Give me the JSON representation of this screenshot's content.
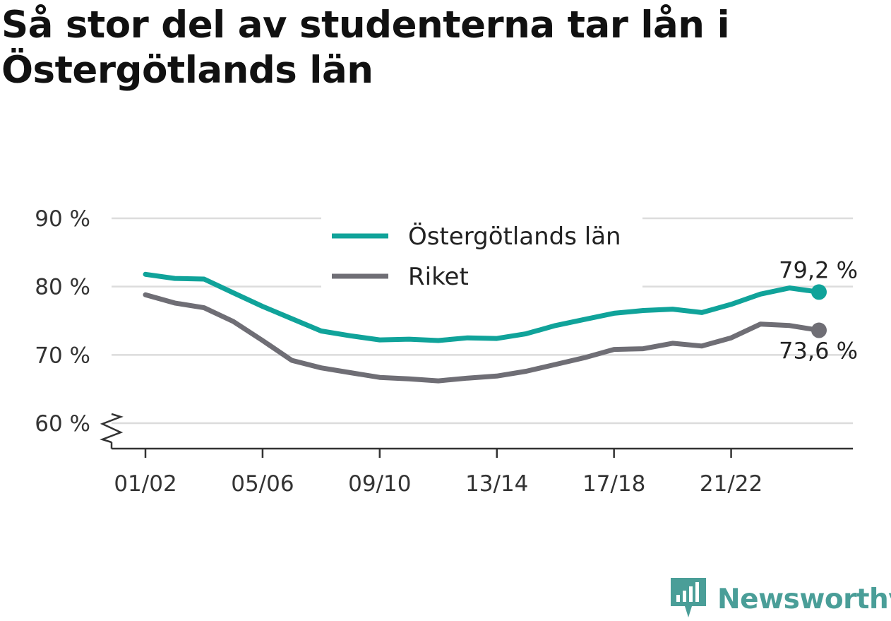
{
  "title": "Så stor del av studenterna tar lån i Östergötlands län",
  "brand": {
    "name": "Newsworthy",
    "icon": "newsworthy-logo-icon",
    "color": "#4a9e98"
  },
  "chart_data": {
    "type": "line",
    "x": [
      "01/02",
      "02/03",
      "03/04",
      "04/05",
      "05/06",
      "06/07",
      "07/08",
      "08/09",
      "09/10",
      "10/11",
      "11/12",
      "12/13",
      "13/14",
      "14/15",
      "15/16",
      "16/17",
      "17/18",
      "18/19",
      "19/20",
      "20/21",
      "21/22",
      "22/23",
      "23/24",
      "24/25"
    ],
    "x_tick_labels": [
      "01/02",
      "05/06",
      "09/10",
      "13/14",
      "17/18",
      "21/22"
    ],
    "series": [
      {
        "name": "Östergötlands län",
        "color": "#10a39a",
        "values": [
          81.8,
          81.2,
          81.1,
          79.1,
          77.1,
          75.3,
          73.5,
          72.8,
          72.2,
          72.3,
          72.1,
          72.5,
          72.4,
          73.1,
          74.3,
          75.2,
          76.1,
          76.5,
          76.7,
          76.2,
          77.4,
          78.9,
          79.8,
          79.2
        ],
        "end_label": "79,2 %"
      },
      {
        "name": "Riket",
        "color": "#6f6e75",
        "values": [
          78.8,
          77.6,
          76.9,
          74.9,
          72.1,
          69.2,
          68.1,
          67.4,
          66.7,
          66.5,
          66.2,
          66.6,
          66.9,
          67.6,
          68.6,
          69.6,
          70.8,
          70.9,
          71.7,
          71.3,
          72.5,
          74.5,
          74.3,
          73.6
        ],
        "end_label": "73,6 %"
      }
    ],
    "y_ticks": [
      {
        "value": 60,
        "label": "60 %"
      },
      {
        "value": 70,
        "label": "70 %"
      },
      {
        "value": 80,
        "label": "80 %"
      },
      {
        "value": 90,
        "label": "90 %"
      }
    ],
    "ylim": [
      56,
      92
    ],
    "y_axis_break": true,
    "grid": true,
    "legend_position": "top-center"
  }
}
